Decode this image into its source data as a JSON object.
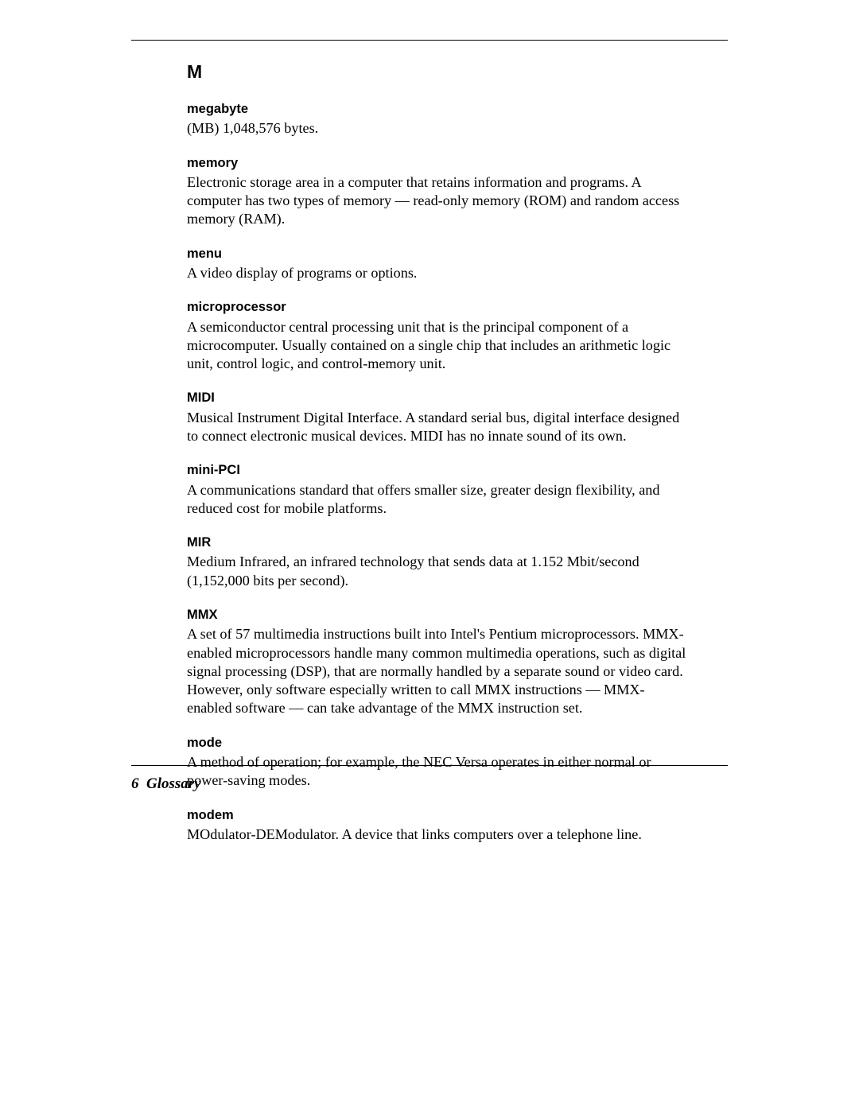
{
  "section_letter": "M",
  "entries": [
    {
      "term": "megabyte",
      "def": "(MB) 1,048,576 bytes."
    },
    {
      "term": "memory",
      "def": "Electronic storage area in a computer that retains information and programs. A computer has two types of memory — read-only memory (ROM) and random access memory (RAM)."
    },
    {
      "term": "menu",
      "def": "A video display of programs or options."
    },
    {
      "term": "microprocessor",
      "def": "A semiconductor central processing unit that is the principal component of a microcomputer. Usually contained on a single chip that includes an arithmetic logic unit, control logic, and control-memory unit."
    },
    {
      "term": "MIDI",
      "def": "Musical Instrument Digital Interface. A standard serial bus, digital interface designed to connect electronic musical devices. MIDI has no innate sound of its own."
    },
    {
      "term": "mini-PCI",
      "def": "A communications standard that offers smaller size, greater design flexibility, and reduced cost for mobile platforms."
    },
    {
      "term": "MIR",
      "def": "Medium Infrared, an infrared technology that sends data at 1.152 Mbit/second (1,152,000 bits per second)."
    },
    {
      "term": "MMX",
      "def": "A set of 57 multimedia instructions built into Intel's Pentium microprocessors. MMX-enabled microprocessors handle many common multimedia operations, such as digital signal processing (DSP), that are normally handled by a separate sound or video card. However, only software especially written to call MMX instructions — MMX-enabled software — can take advantage of the MMX instruction set."
    },
    {
      "term": "mode",
      "def": "A method of operation; for example, the NEC Versa operates in either normal or power-saving modes."
    },
    {
      "term": "modem",
      "def": "MOdulator-DEModulator. A device that links computers over a telephone line."
    }
  ],
  "footer": {
    "page_number": "6",
    "section_title": "Glossary"
  }
}
